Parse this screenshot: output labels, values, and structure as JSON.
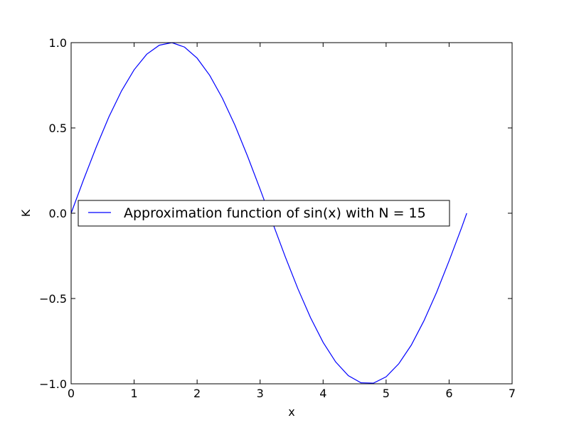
{
  "chart_data": {
    "type": "line",
    "title": "",
    "xlabel": "x",
    "ylabel": "K",
    "xlim": [
      0,
      7
    ],
    "ylim": [
      -1.0,
      1.0
    ],
    "xticks": [
      0,
      1,
      2,
      3,
      4,
      5,
      6,
      7
    ],
    "xtick_labels": [
      "0",
      "1",
      "2",
      "3",
      "4",
      "5",
      "6",
      "7"
    ],
    "yticks": [
      -1.0,
      -0.5,
      0.0,
      0.5,
      1.0
    ],
    "ytick_labels": [
      "−1.0",
      "−0.5",
      "0.0",
      "0.5",
      "1.0"
    ],
    "grid": false,
    "legend_position": "center-left",
    "series": [
      {
        "name": "Approximation function of sin(x) with N = 15",
        "color": "#0000ff",
        "x": [
          0,
          0.2,
          0.4,
          0.6,
          0.8,
          1.0,
          1.2,
          1.4,
          1.6,
          1.8,
          2.0,
          2.2,
          2.4,
          2.6,
          2.8,
          3.0,
          3.2,
          3.4,
          3.6,
          3.8,
          4.0,
          4.2,
          4.4,
          4.6,
          4.8,
          5.0,
          5.2,
          5.4,
          5.6,
          5.8,
          6.0,
          6.2,
          6.28
        ],
        "y": [
          0,
          0.199,
          0.389,
          0.565,
          0.717,
          0.841,
          0.932,
          0.985,
          1.0,
          0.974,
          0.909,
          0.808,
          0.675,
          0.516,
          0.335,
          0.141,
          -0.058,
          -0.256,
          -0.443,
          -0.612,
          -0.757,
          -0.872,
          -0.952,
          -0.994,
          -0.996,
          -0.959,
          -0.883,
          -0.773,
          -0.631,
          -0.465,
          -0.279,
          -0.083,
          0
        ]
      }
    ]
  },
  "colors": {
    "line": "#0000ff",
    "axes": "#000000",
    "background": "#ffffff"
  }
}
